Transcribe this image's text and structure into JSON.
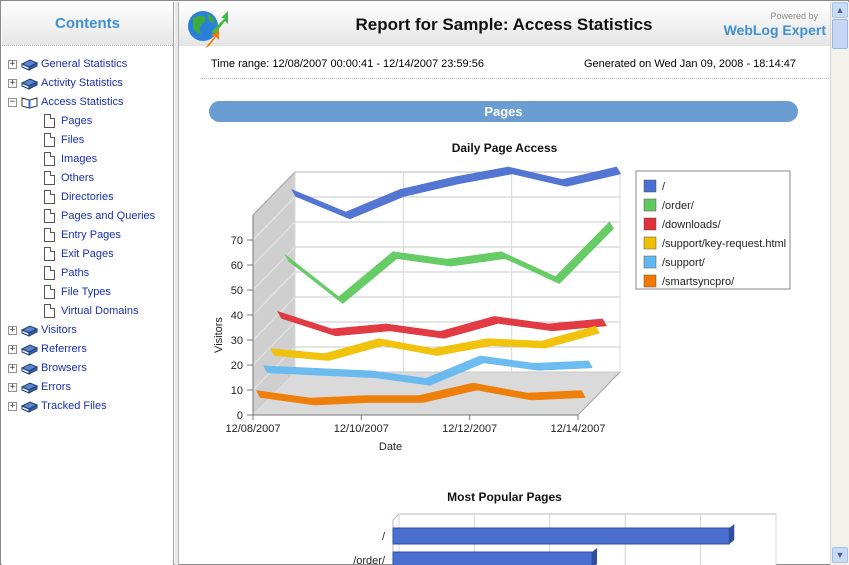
{
  "sidebar": {
    "title": "Contents",
    "items": [
      {
        "label": "General Statistics",
        "toggle": "+",
        "type": "book"
      },
      {
        "label": "Activity Statistics",
        "toggle": "+",
        "type": "book"
      },
      {
        "label": "Access Statistics",
        "toggle": "−",
        "type": "book-open"
      },
      {
        "label": "Pages",
        "type": "page"
      },
      {
        "label": "Files",
        "type": "page"
      },
      {
        "label": "Images",
        "type": "page"
      },
      {
        "label": "Others",
        "type": "page"
      },
      {
        "label": "Directories",
        "type": "page"
      },
      {
        "label": "Pages and Queries",
        "type": "page"
      },
      {
        "label": "Entry Pages",
        "type": "page"
      },
      {
        "label": "Exit Pages",
        "type": "page"
      },
      {
        "label": "Paths",
        "type": "page"
      },
      {
        "label": "File Types",
        "type": "page"
      },
      {
        "label": "Virtual Domains",
        "type": "page"
      },
      {
        "label": "Visitors",
        "toggle": "+",
        "type": "book"
      },
      {
        "label": "Referrers",
        "toggle": "+",
        "type": "book"
      },
      {
        "label": "Browsers",
        "toggle": "+",
        "type": "book"
      },
      {
        "label": "Errors",
        "toggle": "+",
        "type": "book"
      },
      {
        "label": "Tracked Files",
        "toggle": "+",
        "type": "book"
      }
    ]
  },
  "header": {
    "title": "Report for Sample: Access Statistics",
    "powered_by": "Powered by",
    "brand": "WebLog Expert",
    "icon": "globe-arrows-icon"
  },
  "meta": {
    "time_range": "Time range: 12/08/2007 00:00:41 - 12/14/2007 23:59:56",
    "generated": "Generated on Wed Jan 09, 2008 - 18:14:47"
  },
  "section": {
    "title": "Pages"
  },
  "colors": {
    "accent": "#3f8fd2",
    "section_bar": "#6a9dd1",
    "link": "#1a2fb0"
  },
  "chart_data": [
    {
      "type": "line",
      "title": "Daily Page Access",
      "xlabel": "Date",
      "ylabel": "Visitors",
      "ylim": [
        0,
        80
      ],
      "yticks": [
        0,
        10,
        20,
        30,
        40,
        50,
        60,
        70
      ],
      "x": [
        "12/08/2007",
        "12/09/2007",
        "12/10/2007",
        "12/11/2007",
        "12/12/2007",
        "12/13/2007",
        "12/14/2007"
      ],
      "xtick_labels": [
        "12/08/2007",
        "12/10/2007",
        "12/12/2007",
        "12/14/2007"
      ],
      "legend_position": "right",
      "grid": true,
      "series": [
        {
          "name": "/",
          "color": "#4a6fd0",
          "values": [
            73,
            64,
            73,
            78,
            82,
            77,
            82
          ]
        },
        {
          "name": "/order/",
          "color": "#5ec95e",
          "values": [
            50,
            33,
            51,
            48,
            51,
            41,
            63
          ]
        },
        {
          "name": "/downloads/",
          "color": "#e0303a",
          "values": [
            30,
            23,
            25,
            22,
            28,
            25,
            27
          ]
        },
        {
          "name": "/support/key-request.html",
          "color": "#f0c000",
          "values": [
            18,
            16,
            22,
            18,
            22,
            21,
            27
          ]
        },
        {
          "name": "/support/",
          "color": "#64b8f0",
          "values": [
            14,
            13,
            12,
            9,
            18,
            15,
            16
          ]
        },
        {
          "name": "/smartsyncpro/",
          "color": "#f07a00",
          "values": [
            7,
            4,
            5,
            5,
            10,
            6,
            7
          ]
        }
      ]
    },
    {
      "type": "bar",
      "orientation": "horizontal",
      "title": "Most Popular Pages",
      "categories": [
        "/",
        "/order/"
      ],
      "values": [
        446,
        264
      ],
      "series_color": "#4a6fd0"
    }
  ]
}
